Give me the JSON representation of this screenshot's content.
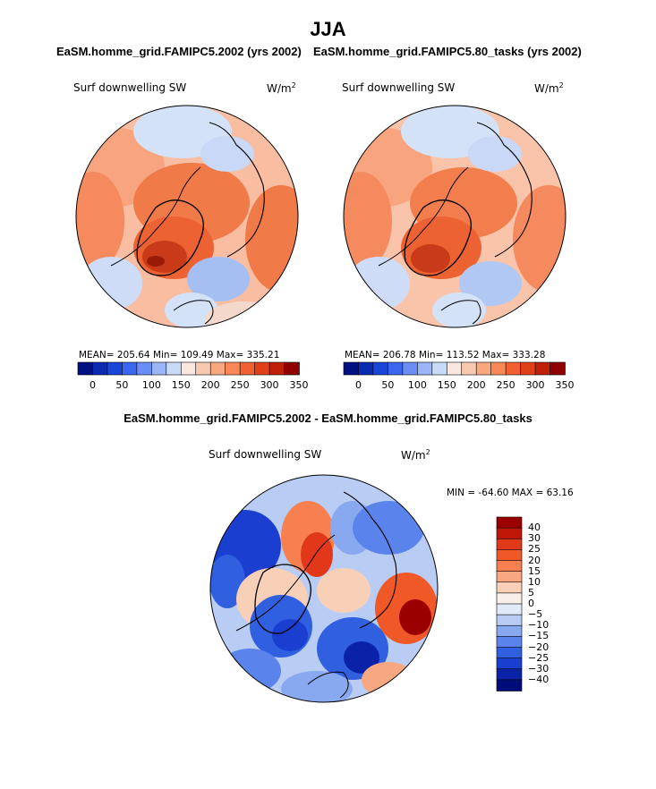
{
  "figure": {
    "title": "JJA",
    "panel_left": {
      "subtitle": "EaSM.homme_grid.FAMIPC5.2002 (yrs 2002)",
      "variable": "Surf downwelling SW",
      "units_base": "W/m",
      "units_exp": "2",
      "stats": "MEAN= 205.64   Min= 109.49   Max= 335.21"
    },
    "panel_right": {
      "subtitle": "EaSM.homme_grid.FAMIPC5.80_tasks (yrs 2002)",
      "variable": "Surf downwelling SW",
      "units_base": "W/m",
      "units_exp": "2",
      "stats": "MEAN= 206.78   Min= 113.52   Max= 333.28"
    },
    "panel_diff": {
      "subtitle": "EaSM.homme_grid.FAMIPC5.2002 - EaSM.homme_grid.FAMIPC5.80_tasks",
      "variable": "Surf downwelling SW",
      "units_base": "W/m",
      "units_exp": "2",
      "stats": "MIN = -64.60 MAX =  63.16"
    },
    "colorbar_main": {
      "colors": [
        "#001080",
        "#0a2ab0",
        "#1a46d8",
        "#3a66f0",
        "#6a8ef5",
        "#9ab4f8",
        "#c8daf8",
        "#f8e8e0",
        "#f8c8b0",
        "#f8a880",
        "#f88858",
        "#f06030",
        "#e04018",
        "#c02008",
        "#900000"
      ],
      "tick_labels": [
        "0",
        "50",
        "100",
        "150",
        "200",
        "250",
        "300",
        "350"
      ]
    },
    "colorbar_diff": {
      "colors": [
        "#9a0000",
        "#c01808",
        "#e03818",
        "#f05828",
        "#f88050",
        "#f8a880",
        "#f8d0b8",
        "#f8f0e8",
        "#e0eaf8",
        "#b8ccf4",
        "#88a8f0",
        "#5a84ec",
        "#3060e0",
        "#1a3ed0",
        "#0a22a8",
        "#000c78"
      ],
      "tick_labels": [
        "40",
        "30",
        "25",
        "20",
        "15",
        "10",
        "5",
        "0",
        "−5",
        "−10",
        "−15",
        "−20",
        "−25",
        "−30",
        "−40"
      ]
    }
  },
  "chart_data": {
    "type": "heatmap",
    "title": "JJA",
    "maps": [
      {
        "name": "EaSM.homme_grid.FAMIPC5.2002 (yrs 2002)",
        "variable": "Surf downwelling SW",
        "units": "W/m^2",
        "mean": 205.64,
        "min": 109.49,
        "max": 335.21,
        "range": [
          0,
          350
        ]
      },
      {
        "name": "EaSM.homme_grid.FAMIPC5.80_tasks (yrs 2002)",
        "variable": "Surf downwelling SW",
        "units": "W/m^2",
        "mean": 206.78,
        "min": 113.52,
        "max": 333.28,
        "range": [
          0,
          350
        ]
      },
      {
        "name": "EaSM.homme_grid.FAMIPC5.2002 - EaSM.homme_grid.FAMIPC5.80_tasks",
        "variable": "Surf downwelling SW",
        "units": "W/m^2",
        "min": -64.6,
        "max": 63.16,
        "range": [
          -40,
          40
        ]
      }
    ]
  }
}
